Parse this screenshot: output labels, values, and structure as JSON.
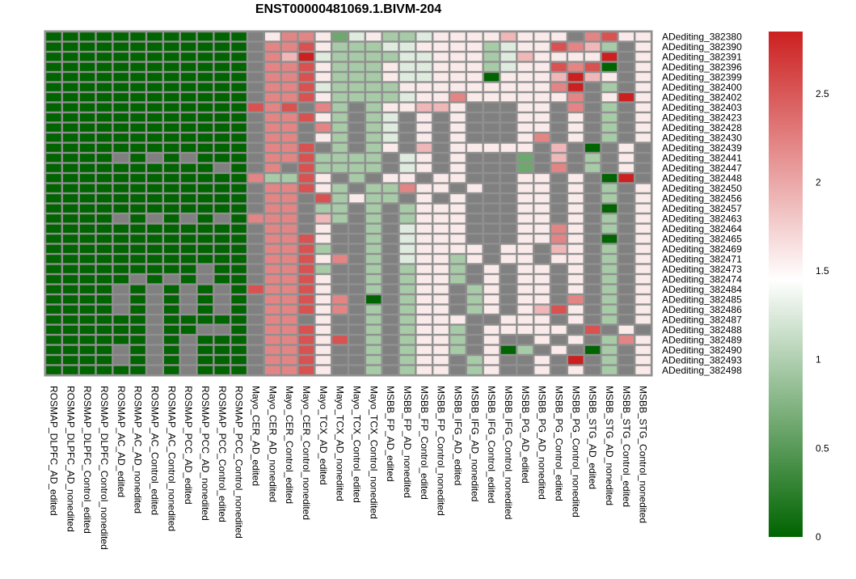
{
  "chart_data": {
    "type": "heatmap",
    "title": "ENST00000481069.1.BIVM-204",
    "rows": [
      "ADediting_382380",
      "ADediting_382390",
      "ADediting_382391",
      "ADediting_382396",
      "ADediting_382399",
      "ADediting_382400",
      "ADediting_382402",
      "ADediting_382403",
      "ADediting_382423",
      "ADediting_382428",
      "ADediting_382430",
      "ADediting_382439",
      "ADediting_382441",
      "ADediting_382447",
      "ADediting_382448",
      "ADediting_382450",
      "ADediting_382456",
      "ADediting_382457",
      "ADediting_382463",
      "ADediting_382464",
      "ADediting_382465",
      "ADediting_382469",
      "ADediting_382471",
      "ADediting_382473",
      "ADediting_382474",
      "ADediting_382484",
      "ADediting_382485",
      "ADediting_382486",
      "ADediting_382487",
      "ADediting_382488",
      "ADediting_382489",
      "ADediting_382490",
      "ADediting_382493",
      "ADediting_382498"
    ],
    "columns": [
      "ROSMAP_DLPFC_AD_edited",
      "ROSMAP_DLPFC_AD_nonedited",
      "ROSMAP_DLPFC_Control_edited",
      "ROSMAP_DLPFC_Control_nonedited",
      "ROSMAP_AC_AD_edited",
      "ROSMAP_AC_AD_nonedited",
      "ROSMAP_AC_Control_edited",
      "ROSMAP_AC_Control_nonedited",
      "ROSMAP_PCC_AD_edited",
      "ROSMAP_PCC_AD_nonedited",
      "ROSMAP_PCC_Control_edited",
      "ROSMAP_PCC_Control_nonedited",
      "Mayo_CER_AD_edited",
      "Mayo_CER_AD_nonedited",
      "Mayo_CER_Control_edited",
      "Mayo_CER_Control_nonedited",
      "Mayo_TCX_AD_edited",
      "Mayo_TCX_AD_nonedited",
      "Mayo_TCX_Control_edited",
      "Mayo_TCX_Control_nonedited",
      "MSBB_FP_AD_edited",
      "MSBB_FP_AD_nonedited",
      "MSBB_FP_Control_edited",
      "MSBB_FP_Control_nonedited",
      "MSBB_IFG_AD_edited",
      "MSBB_IFG_AD_nonedited",
      "MSBB_IFG_Control_edited",
      "MSBB_IFG_Control_nonedited",
      "MSBB_PG_AD_edited",
      "MSBB_PG_AD_nonedited",
      "MSBB_PG_Control_edited",
      "MSBB_PG_Control_nonedited",
      "MSBB_STG_AD_edited",
      "MSBB_STG_AD_nonedited",
      "MSBB_STG_Control_edited",
      "MSBB_STG_Control_nonedited"
    ],
    "color_scale": {
      "min": 0,
      "max": 2.85,
      "low": "#006400",
      "mid": "#ffffff",
      "high": "#cc2020",
      "mid_value": 1.45,
      "ticks": [
        "0",
        "0.5",
        "1",
        "1.5",
        "2",
        "2.5"
      ],
      "na_color": "#808080"
    },
    "cell_border_color": "#909090",
    "values_encoding": "Each row string: one character per column. Digits 0-9 map to value d/9*2.85; 'n' marks a missing (NA) cell drawn grey.",
    "values": [
      "000000000000n577524533455556555n7855",
      "000000000000n778533344555534558763n5",
      "000000000000n769433334455534655559n5",
      "000000000000n778533354455534558780n5",
      "000000000000n778533354455505556965n5",
      "000000000000n7784333355555555579n3n5",
      "000000000000n7785333345575555557n595",
      "000000000000878n73n355665nnn55n7n3n5",
      "000000000000n77853n34n5n5nnn55n5n3n5",
      "000000000000n77n73n34n5n5nnn55n5n3n5",
      "000000000000n77n53n34n5n5nnn57n5n3n5",
      "000000000000n778n3n35n6n55555n6n0n5n",
      "0000n0n0n000n7783333n45n5nnn2n6n3n5n",
      "0000000000n0n7n83333n45n5nnn2n7n3n5n",
      "00000000000073385n3n55n55nnn55n5n09n",
      "000000000000n77853n33755n5nn55n5n3n5",
      "000000000000n77n83533n5n5nnn55n5n3n5",
      "000000000000n77n33n3n3555nnn55n5n0n5",
      "0000n0n0n0n0777n63n3n3555nnn55n5n3n5",
      "000000000000n77n5nn3n4555nnn5575n3n5",
      "000000000000n7785nn3n4555nnn5575n0n5",
      "000000000000n7783nn3n45555n55n65n3n5",
      "000000000000n77857n3n45535n55n55n3n5",
      "000000000n00n7783nn3n3553n5n55n5n3n5",
      "00000n0n0n00n7785nn3n3553n5n55n5n3n5",
      "0000n0n0n0n087785nn3n355n35n55n5n3n5",
      "0000n0n0n0n0n77857n0n355n35n55n7n3n5",
      "0000n0n0n0n0n77857n3n355n35n5685n3n5",
      "000000n00000n77n5nn3n3555nn555n5n3n5",
      "000000n00nn0n7785nn3n3553n55555n8n5n",
      "000000n0n000n77858n3n3553n5nn5n5n375",
      "0000n0n0n000n7785nn3n3553n503n5n03n5",
      "0000n0n0n000n7785nn3n355n35nn5n9n3n5",
      "000000n0n000n7785nn3n355n35nn5n5n3n5"
    ]
  }
}
